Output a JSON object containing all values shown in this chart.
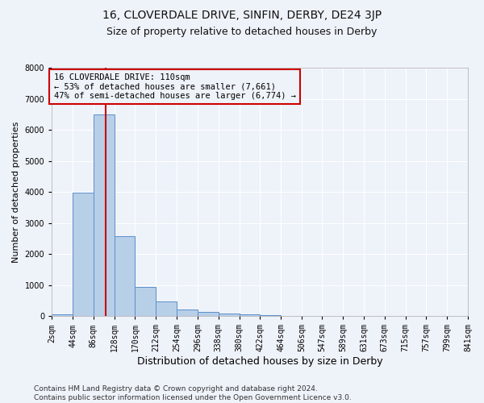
{
  "title_main": "16, CLOVERDALE DRIVE, SINFIN, DERBY, DE24 3JP",
  "title_sub": "Size of property relative to detached houses in Derby",
  "xlabel": "Distribution of detached houses by size in Derby",
  "ylabel": "Number of detached properties",
  "footnote": "Contains HM Land Registry data © Crown copyright and database right 2024.\nContains public sector information licensed under the Open Government Licence v3.0.",
  "bin_edges": [
    2,
    44,
    86,
    128,
    170,
    212,
    254,
    296,
    338,
    380,
    422,
    464,
    506,
    547,
    589,
    631,
    673,
    715,
    757,
    799,
    841
  ],
  "bar_heights": [
    50,
    3980,
    6500,
    2580,
    950,
    480,
    210,
    140,
    90,
    50,
    28,
    16,
    10,
    7,
    5,
    3,
    2,
    1,
    1,
    1
  ],
  "bar_color": "#b8cfe8",
  "bar_edge_color": "#5b8fcc",
  "property_line_x": 110,
  "property_line_color": "#cc0000",
  "annotation_text": "16 CLOVERDALE DRIVE: 110sqm\n← 53% of detached houses are smaller (7,661)\n47% of semi-detached houses are larger (6,774) →",
  "annotation_box_color": "#cc0000",
  "ylim": [
    0,
    8000
  ],
  "yticks": [
    0,
    1000,
    2000,
    3000,
    4000,
    5000,
    6000,
    7000,
    8000
  ],
  "bg_color": "#eef2f9",
  "grid_color": "#ffffff",
  "title_main_fontsize": 10,
  "title_sub_fontsize": 9,
  "xlabel_fontsize": 9,
  "ylabel_fontsize": 8,
  "tick_fontsize": 7,
  "footnote_fontsize": 6.5,
  "annot_fontsize": 7.5
}
